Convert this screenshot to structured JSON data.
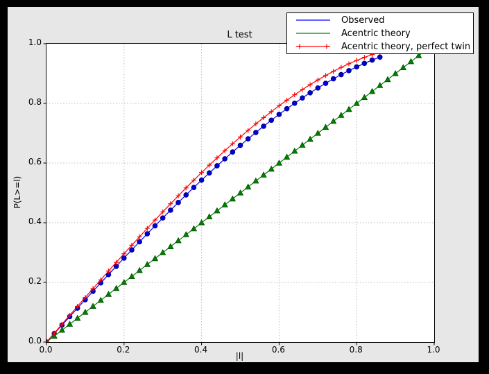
{
  "window": {
    "bg": "#000000",
    "figure_bg": "#e7e7e7",
    "plot_bg": "#ffffff"
  },
  "chart": {
    "title": "L test",
    "xlabel": "|l|",
    "ylabel": "P(L>=l)"
  },
  "axes": {
    "x": {
      "min": 0,
      "max": 1,
      "ticks": [
        0,
        0.2,
        0.4,
        0.6,
        0.8,
        1.0
      ],
      "tick_labels": [
        "0.0",
        "0.2",
        "0.4",
        "0.6",
        "0.8",
        "1.0"
      ],
      "grid_ticks": [
        0.2,
        0.4,
        0.6,
        0.8
      ]
    },
    "y": {
      "min": 0,
      "max": 1,
      "ticks": [
        0,
        0.2,
        0.4,
        0.6,
        0.8,
        1.0
      ],
      "tick_labels": [
        "0.0",
        "0.2",
        "0.4",
        "0.6",
        "0.8",
        "1.0"
      ],
      "grid_ticks": [
        0.2,
        0.4,
        0.6,
        0.8
      ]
    }
  },
  "legend": {
    "items": [
      {
        "label": "Observed",
        "color": "#0000ff",
        "marker": "none"
      },
      {
        "label": "Acentric theory",
        "color": "#007f00",
        "marker": "none"
      },
      {
        "label": "Acentric theory, perfect twin",
        "color": "#ff0000",
        "marker": "plus"
      }
    ]
  },
  "chart_data": {
    "type": "line",
    "title": "L test",
    "xlabel": "|l|",
    "ylabel": "P(L>=l)",
    "xlim": [
      0,
      1
    ],
    "ylim": [
      0,
      1
    ],
    "grid": true,
    "grid_style": "dotted",
    "legend_position": "upper right",
    "series": [
      {
        "name": "Observed",
        "color": "#0000ff",
        "marker": "circle",
        "marker_fill": "#0000dd",
        "marker_edge": "#000080",
        "x": [
          0,
          0.02,
          0.04,
          0.06,
          0.08,
          0.1,
          0.12,
          0.14,
          0.16,
          0.18,
          0.2,
          0.22,
          0.24,
          0.26,
          0.28,
          0.3,
          0.32,
          0.34,
          0.36,
          0.38,
          0.4,
          0.42,
          0.44,
          0.46,
          0.48,
          0.5,
          0.52,
          0.54,
          0.56,
          0.58,
          0.6,
          0.62,
          0.64,
          0.66,
          0.68,
          0.7,
          0.72,
          0.74,
          0.76,
          0.78,
          0.8,
          0.82,
          0.84,
          0.86
        ],
        "y": [
          0,
          0.0285,
          0.057,
          0.0854,
          0.1138,
          0.1421,
          0.1703,
          0.1983,
          0.2263,
          0.254,
          0.2816,
          0.309,
          0.3361,
          0.363,
          0.3897,
          0.416,
          0.4421,
          0.4678,
          0.4932,
          0.5182,
          0.5428,
          0.567,
          0.5908,
          0.6141,
          0.637,
          0.6594,
          0.6812,
          0.7026,
          0.7234,
          0.7436,
          0.7632,
          0.7822,
          0.8006,
          0.8183,
          0.8354,
          0.8517,
          0.8674,
          0.8823,
          0.8964,
          0.9098,
          0.9224,
          0.9342,
          0.9451,
          0.9552
        ]
      },
      {
        "name": "Acentric theory",
        "color": "#007f00",
        "marker": "triangle",
        "marker_fill": "#008000",
        "marker_edge": "#004d00",
        "x": [
          0,
          0.02,
          0.04,
          0.06,
          0.08,
          0.1,
          0.12,
          0.14,
          0.16,
          0.18,
          0.2,
          0.22,
          0.24,
          0.26,
          0.28,
          0.3,
          0.32,
          0.34,
          0.36,
          0.38,
          0.4,
          0.42,
          0.44,
          0.46,
          0.48,
          0.5,
          0.52,
          0.54,
          0.56,
          0.58,
          0.6,
          0.62,
          0.64,
          0.66,
          0.68,
          0.7,
          0.72,
          0.74,
          0.76,
          0.78,
          0.8,
          0.82,
          0.84,
          0.86,
          0.88,
          0.9,
          0.92,
          0.94,
          0.96,
          0.98,
          1
        ],
        "y": [
          0,
          0.02,
          0.04,
          0.06,
          0.08,
          0.1,
          0.12,
          0.14,
          0.16,
          0.18,
          0.2,
          0.22,
          0.24,
          0.26,
          0.28,
          0.3,
          0.32,
          0.34,
          0.36,
          0.38,
          0.4,
          0.42,
          0.44,
          0.46,
          0.48,
          0.5,
          0.52,
          0.54,
          0.56,
          0.58,
          0.6,
          0.62,
          0.64,
          0.66,
          0.68,
          0.7,
          0.72,
          0.74,
          0.76,
          0.78,
          0.8,
          0.82,
          0.84,
          0.86,
          0.88,
          0.9,
          0.92,
          0.94,
          0.96,
          0.98,
          1
        ]
      },
      {
        "name": "Acentric theory, perfect twin",
        "color": "#ff0000",
        "marker": "plus",
        "marker_fill": "none",
        "marker_edge": "#ff0000",
        "x": [
          0,
          0.02,
          0.04,
          0.06,
          0.08,
          0.1,
          0.12,
          0.14,
          0.16,
          0.18,
          0.2,
          0.22,
          0.24,
          0.26,
          0.28,
          0.3,
          0.32,
          0.34,
          0.36,
          0.38,
          0.4,
          0.42,
          0.44,
          0.46,
          0.48,
          0.5,
          0.52,
          0.54,
          0.56,
          0.58,
          0.6,
          0.62,
          0.64,
          0.66,
          0.68,
          0.7,
          0.72,
          0.74,
          0.76,
          0.78,
          0.8,
          0.82,
          0.84,
          0.86,
          0.88,
          0.9,
          0.92,
          0.94,
          0.96,
          0.98,
          1
        ],
        "y": [
          0,
          0.03,
          0.06,
          0.0899,
          0.1197,
          0.1495,
          0.1791,
          0.2086,
          0.238,
          0.2671,
          0.296,
          0.3247,
          0.3531,
          0.3812,
          0.409,
          0.4365,
          0.4636,
          0.4903,
          0.5167,
          0.5426,
          0.568,
          0.593,
          0.6174,
          0.6413,
          0.6647,
          0.6875,
          0.7097,
          0.7313,
          0.7522,
          0.7724,
          0.792,
          0.8108,
          0.8289,
          0.8463,
          0.8628,
          0.8785,
          0.8934,
          0.9074,
          0.9205,
          0.9327,
          0.944,
          0.9543,
          0.9636,
          0.972,
          0.9793,
          0.9855,
          0.9907,
          0.9947,
          0.9976,
          0.9994,
          1
        ]
      }
    ]
  }
}
